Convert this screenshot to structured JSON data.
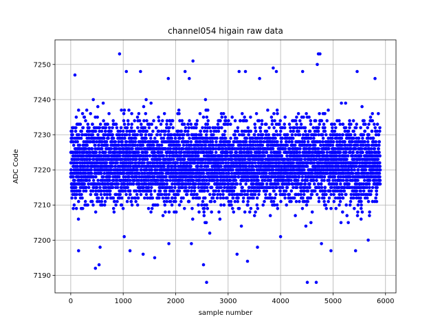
{
  "chart_data": {
    "type": "scatter",
    "title": "channel054 higain raw data",
    "xlabel": "sample number",
    "ylabel": "ADC Code",
    "xlim": [
      -300,
      6200
    ],
    "ylim": [
      7185,
      7257
    ],
    "xticks": [
      0,
      1000,
      2000,
      3000,
      4000,
      5000,
      6000
    ],
    "yticks": [
      7190,
      7200,
      7210,
      7220,
      7230,
      7240,
      7250
    ],
    "grid": true,
    "marker_color": "#0000ff",
    "n_samples": 5900,
    "baseline": 7222,
    "typical_range": [
      7204,
      7240
    ],
    "points": [
      {
        "x": 930,
        "y": 7253
      },
      {
        "x": 4720,
        "y": 7253
      },
      {
        "x": 4750,
        "y": 7253
      },
      {
        "x": 2330,
        "y": 7251
      },
      {
        "x": 4700,
        "y": 7250
      },
      {
        "x": 3860,
        "y": 7249
      },
      {
        "x": 80,
        "y": 7247
      },
      {
        "x": 1060,
        "y": 7248
      },
      {
        "x": 3210,
        "y": 7248
      },
      {
        "x": 4420,
        "y": 7248
      },
      {
        "x": 5460,
        "y": 7248
      },
      {
        "x": 1330,
        "y": 7248
      },
      {
        "x": 3330,
        "y": 7248
      },
      {
        "x": 3920,
        "y": 7248
      },
      {
        "x": 2180,
        "y": 7248
      },
      {
        "x": 1860,
        "y": 7246
      },
      {
        "x": 2260,
        "y": 7246
      },
      {
        "x": 3600,
        "y": 7246
      },
      {
        "x": 5800,
        "y": 7246
      },
      {
        "x": 2590,
        "y": 7188
      },
      {
        "x": 4510,
        "y": 7188
      },
      {
        "x": 4680,
        "y": 7188
      },
      {
        "x": 470,
        "y": 7192
      },
      {
        "x": 540,
        "y": 7193
      },
      {
        "x": 2530,
        "y": 7193
      },
      {
        "x": 3370,
        "y": 7194
      },
      {
        "x": 1600,
        "y": 7195
      },
      {
        "x": 1380,
        "y": 7196
      },
      {
        "x": 3170,
        "y": 7196
      },
      {
        "x": 5430,
        "y": 7197
      },
      {
        "x": 150,
        "y": 7197
      },
      {
        "x": 1130,
        "y": 7197
      },
      {
        "x": 4960,
        "y": 7197
      },
      {
        "x": 1870,
        "y": 7199
      },
      {
        "x": 2300,
        "y": 7199
      },
      {
        "x": 3560,
        "y": 7198
      },
      {
        "x": 4780,
        "y": 7199
      },
      {
        "x": 560,
        "y": 7198
      },
      {
        "x": 5670,
        "y": 7200
      },
      {
        "x": 2650,
        "y": 7202
      },
      {
        "x": 4000,
        "y": 7201
      },
      {
        "x": 1020,
        "y": 7201
      }
    ]
  }
}
